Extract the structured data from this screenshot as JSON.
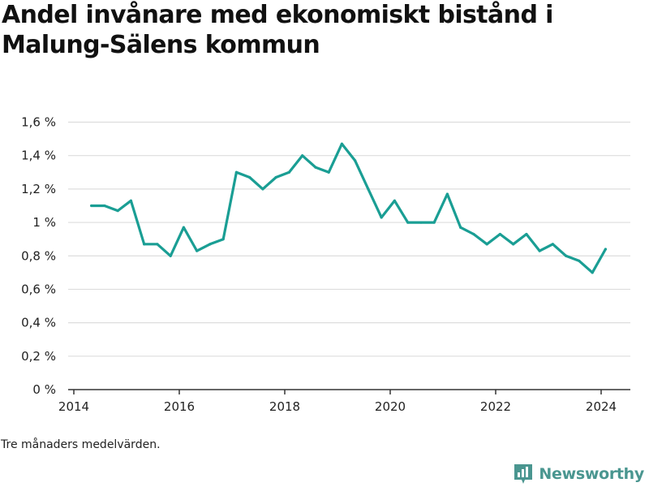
{
  "title": "Andel invånare med ekonomiskt bistånd i Malung-Sälens kommun",
  "caption": "Tre månaders medelvärden.",
  "brand": {
    "name": "Newsworthy",
    "icon": "bar-chart-logo-icon",
    "color": "#4a9690"
  },
  "colors": {
    "line": "#1a9e94",
    "grid": "#dddddd",
    "axis": "#333333"
  },
  "chart_data": {
    "type": "line",
    "title": "Andel invånare med ekonomiskt bistånd i Malung-Sälens kommun",
    "xlabel": "",
    "ylabel": "",
    "x_ticks": [
      "2014",
      "2016",
      "2018",
      "2020",
      "2022",
      "2024"
    ],
    "y_ticks": [
      "0 %",
      "0,2 %",
      "0,4 %",
      "0,6 %",
      "0,8 %",
      "1 %",
      "1,2 %",
      "1,4 %",
      "1,6 %"
    ],
    "xlim": [
      "2014-01",
      "2024-12"
    ],
    "ylim": [
      0,
      1.6
    ],
    "y_unit": "%",
    "grid": true,
    "legend": "none",
    "series": [
      {
        "x": [
          "2014-05",
          "2014-08",
          "2014-11",
          "2015-02",
          "2015-05",
          "2015-08",
          "2015-11",
          "2016-02",
          "2016-05",
          "2016-08",
          "2016-11",
          "2017-02",
          "2017-05",
          "2017-08",
          "2017-11",
          "2018-02",
          "2018-05",
          "2018-08",
          "2018-11",
          "2019-02",
          "2019-05",
          "2019-08",
          "2019-11",
          "2020-02",
          "2020-05",
          "2020-08",
          "2020-11",
          "2021-02",
          "2021-05",
          "2021-08",
          "2021-11",
          "2022-02",
          "2022-05",
          "2022-08",
          "2022-11",
          "2023-02",
          "2023-05",
          "2023-08",
          "2023-11",
          "2024-02"
        ],
        "values": [
          1.1,
          1.1,
          1.07,
          1.13,
          0.87,
          0.87,
          0.8,
          0.97,
          0.83,
          0.87,
          0.9,
          1.3,
          1.27,
          1.2,
          1.27,
          1.3,
          1.4,
          1.33,
          1.3,
          1.47,
          1.37,
          1.2,
          1.03,
          1.13,
          1.0,
          1.0,
          1.0,
          1.17,
          0.97,
          0.93,
          0.87,
          0.93,
          0.87,
          0.93,
          0.83,
          0.87,
          0.8,
          0.77,
          0.7,
          0.84
        ]
      }
    ]
  }
}
